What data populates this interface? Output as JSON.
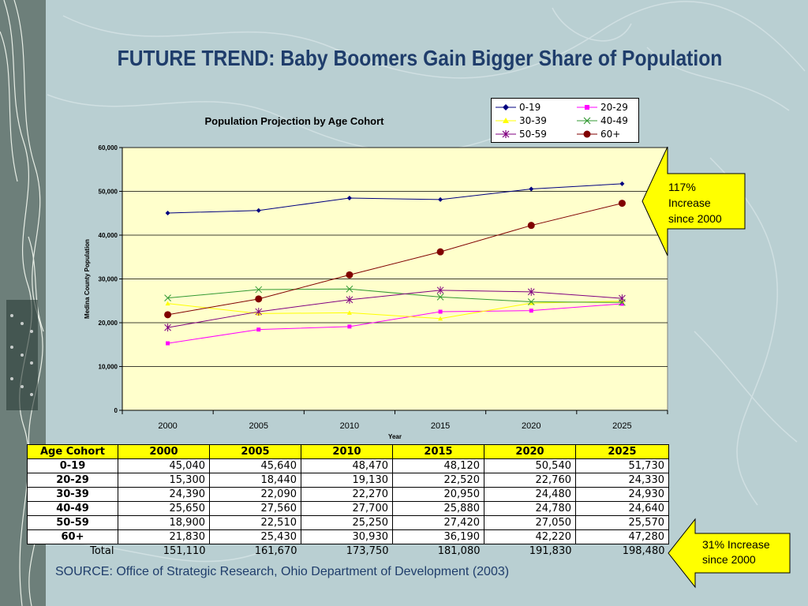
{
  "slide": {
    "title": "FUTURE TREND: Baby Boomers Gain Bigger Share of Population",
    "source": "SOURCE: Office of Strategic Research, Ohio Department of Development (2003)"
  },
  "callouts": {
    "senior": [
      "117%",
      "Increase",
      "since 2000"
    ],
    "total": [
      "31% Increase",
      "since 2000"
    ]
  },
  "colors": {
    "fill_callout": "#ffff00",
    "plot_bg": "#ffffcc",
    "title": "#1f3d6b"
  },
  "chart_data": {
    "type": "line",
    "title": "Population Projection by Age Cohort",
    "xlabel": "Year",
    "ylabel": "Medina County Population",
    "categories": [
      "2000",
      "2005",
      "2010",
      "2015",
      "2020",
      "2025"
    ],
    "ylim": [
      0,
      60000
    ],
    "yticks": [
      0,
      10000,
      20000,
      30000,
      40000,
      50000,
      60000
    ],
    "ytick_labels": [
      "0",
      "10,000",
      "20,000",
      "30,000",
      "40,000",
      "50,000",
      "60,000"
    ],
    "grid": true,
    "legend": "top-right",
    "series": [
      {
        "name": "0-19",
        "color": "#000080",
        "marker": "diamond",
        "values": [
          45040,
          45640,
          48470,
          48120,
          50540,
          51730
        ]
      },
      {
        "name": "20-29",
        "color": "#ff00ff",
        "marker": "square",
        "values": [
          15300,
          18440,
          19130,
          22520,
          22760,
          24330
        ]
      },
      {
        "name": "30-39",
        "color": "#ffff00",
        "marker": "triangle",
        "values": [
          24390,
          22090,
          22270,
          20950,
          24480,
          24930
        ]
      },
      {
        "name": "40-49",
        "color": "#339933",
        "marker": "x",
        "values": [
          25650,
          27560,
          27700,
          25880,
          24780,
          24640
        ]
      },
      {
        "name": "50-59",
        "color": "#800080",
        "marker": "star",
        "values": [
          18900,
          22510,
          25250,
          27420,
          27050,
          25570
        ]
      },
      {
        "name": "60+",
        "color": "#800000",
        "marker": "circle",
        "values": [
          21830,
          25430,
          30930,
          36190,
          42220,
          47280
        ]
      }
    ]
  },
  "table": {
    "headers": [
      "Age Cohort",
      "2000",
      "2005",
      "2010",
      "2015",
      "2020",
      "2025"
    ],
    "rows": [
      [
        "0-19",
        "45,040",
        "45,640",
        "48,470",
        "48,120",
        "50,540",
        "51,730"
      ],
      [
        "20-29",
        "15,300",
        "18,440",
        "19,130",
        "22,520",
        "22,760",
        "24,330"
      ],
      [
        "30-39",
        "24,390",
        "22,090",
        "22,270",
        "20,950",
        "24,480",
        "24,930"
      ],
      [
        "40-49",
        "25,650",
        "27,560",
        "27,700",
        "25,880",
        "24,780",
        "24,640"
      ],
      [
        "50-59",
        "18,900",
        "22,510",
        "25,250",
        "27,420",
        "27,050",
        "25,570"
      ],
      [
        "60+",
        "21,830",
        "25,430",
        "30,930",
        "36,190",
        "42,220",
        "47,280"
      ]
    ],
    "total": [
      "Total",
      "151,110",
      "161,670",
      "173,750",
      "181,080",
      "191,830",
      "198,480"
    ]
  }
}
